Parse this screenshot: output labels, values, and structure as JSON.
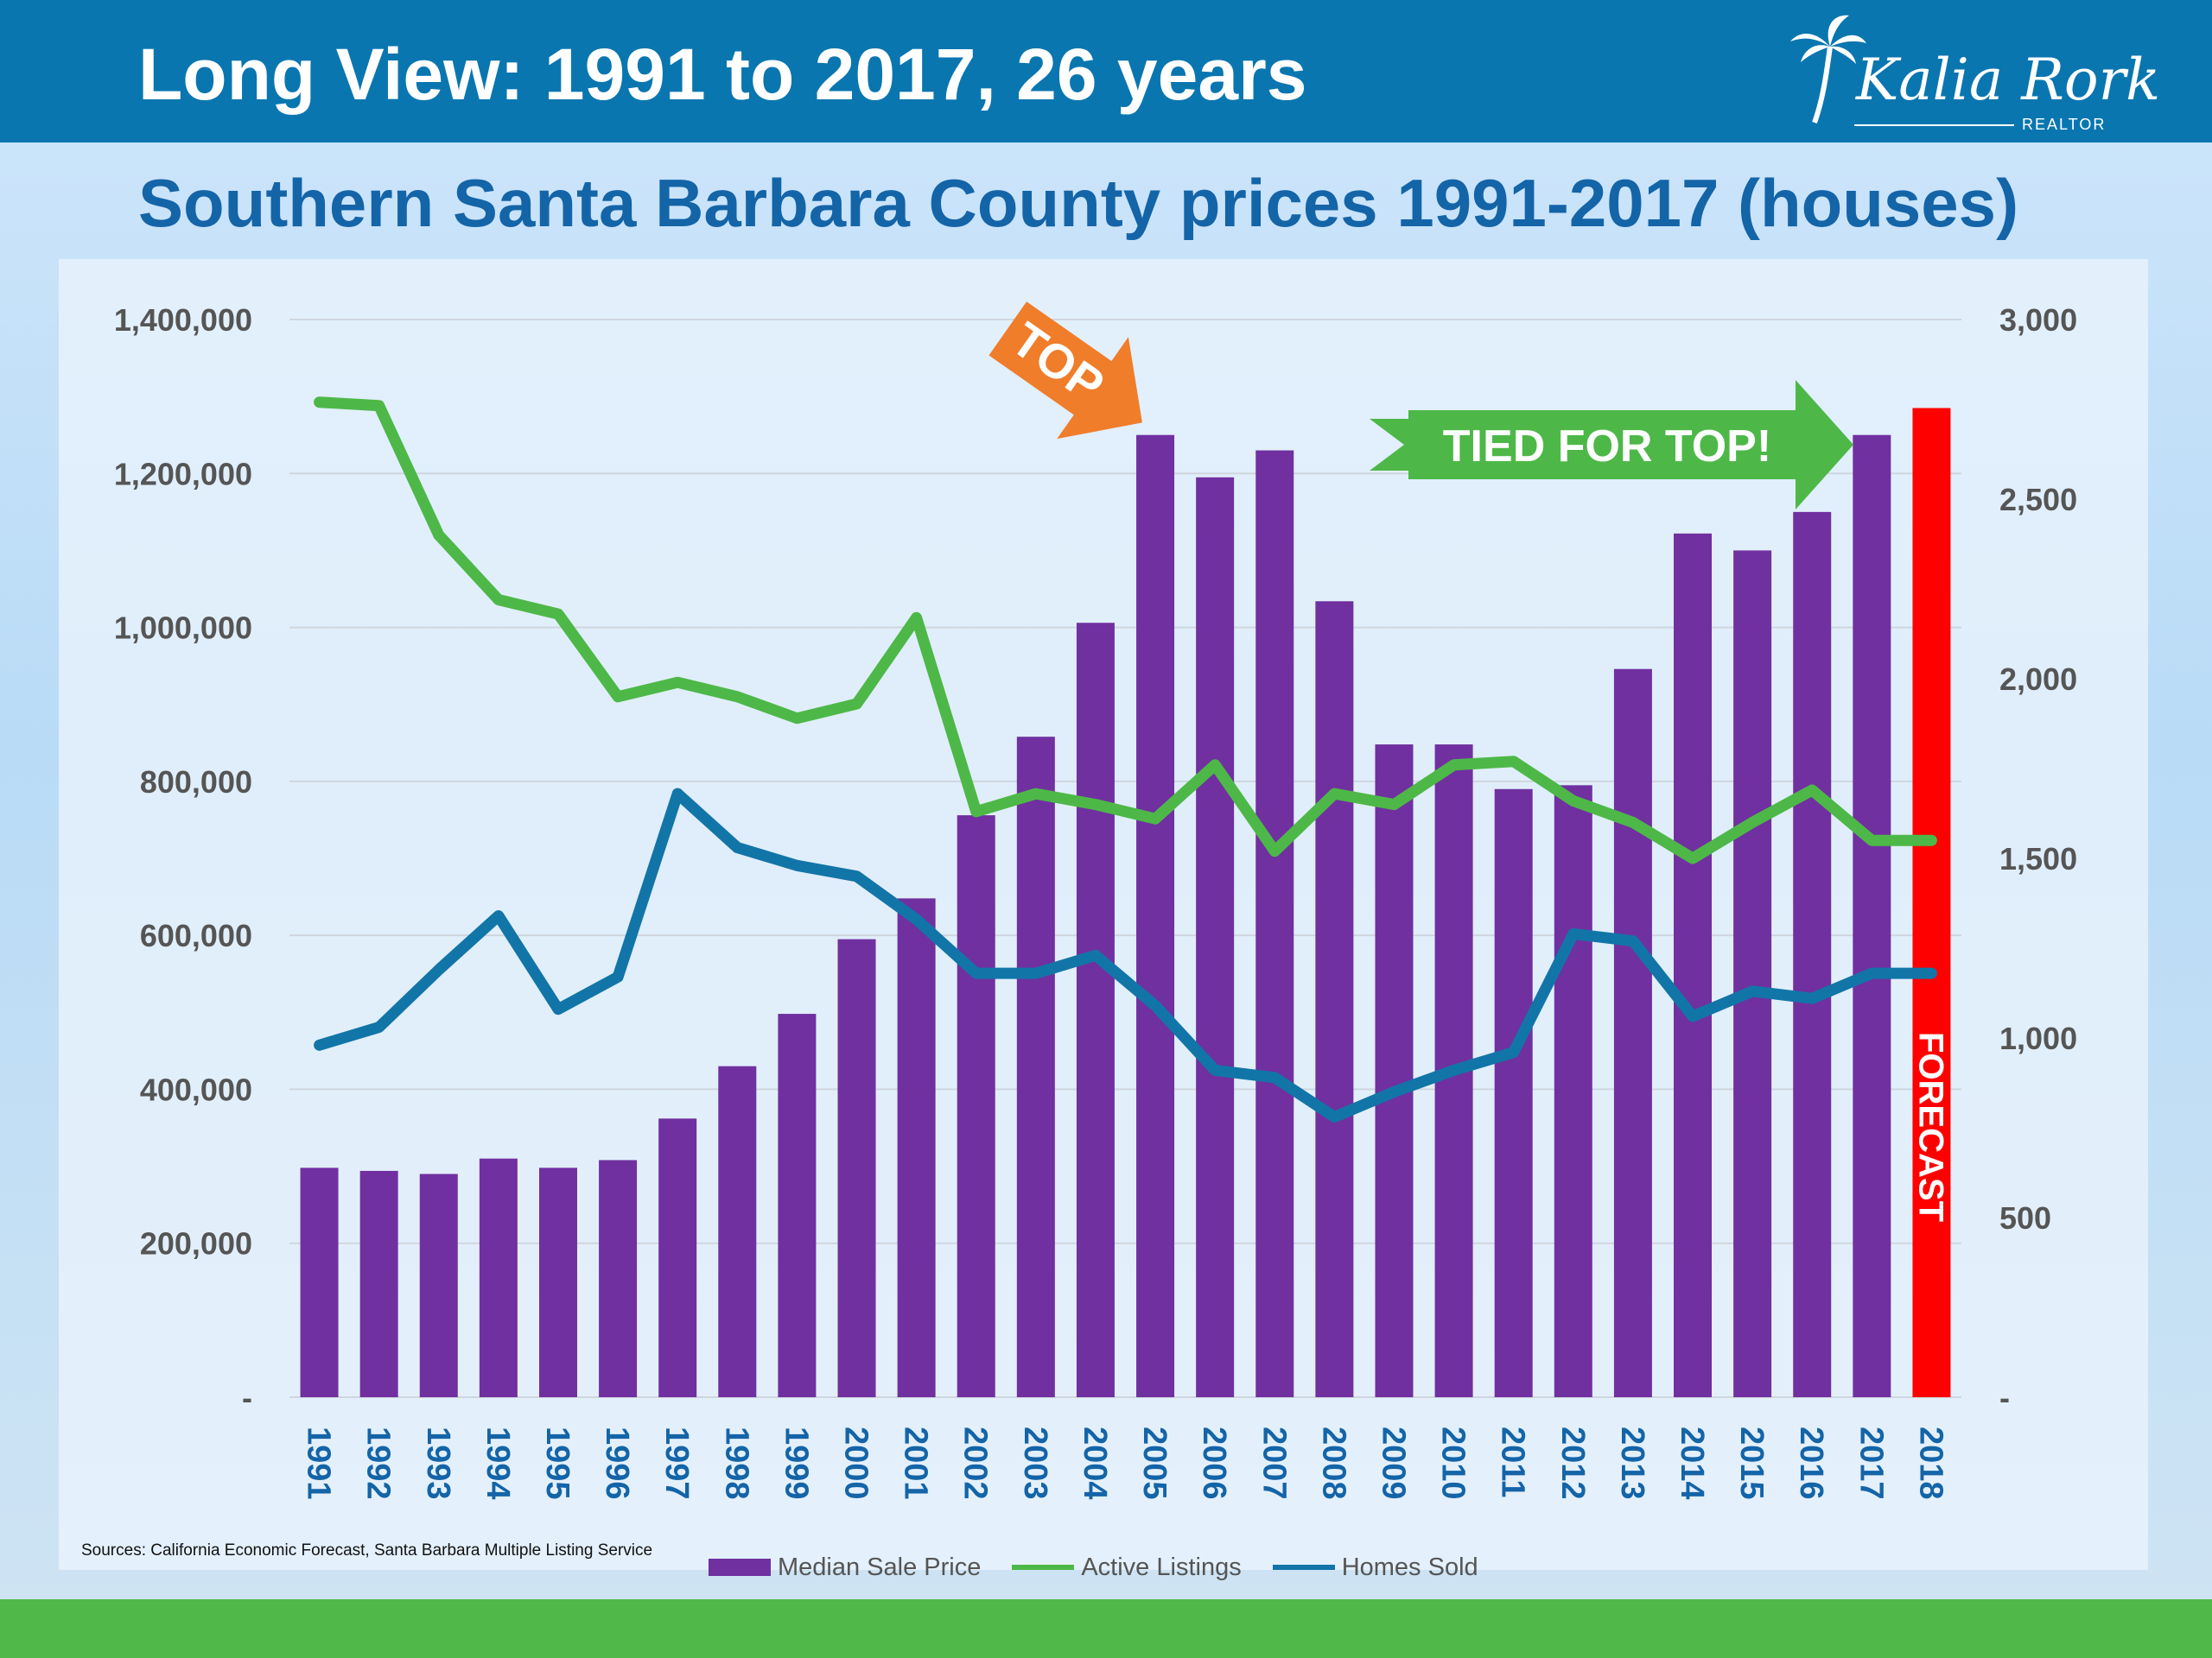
{
  "header": {
    "title": "Long View: 1991 to 2017, 26 years",
    "logo_name": "Kalia Rork",
    "logo_sub": "REALTOR"
  },
  "colors": {
    "header_bg": "#0a76b0",
    "bars": "#7030a0",
    "active_listings": "#4db848",
    "homes_sold": "#1275a8",
    "forecast": "#ff0000",
    "top_arrow": "#f07d2a",
    "tied_arrow": "#4db848",
    "footer": "#50b848"
  },
  "annotations": {
    "top": "TOP",
    "tied": "TIED FOR TOP!",
    "forecast": "FORECAST"
  },
  "source": "Sources: California Economic Forecast, Santa Barbara Multiple Listing Service",
  "chart_data": {
    "type": "bar",
    "title": "Southern Santa Barbara County prices 1991-2017 (houses)",
    "categories": [
      "1991",
      "1992",
      "1993",
      "1994",
      "1995",
      "1996",
      "1997",
      "1998",
      "1999",
      "2000",
      "2001",
      "2002",
      "2003",
      "2004",
      "2005",
      "2006",
      "2007",
      "2008",
      "2009",
      "2010",
      "2011",
      "2012",
      "2013",
      "2014",
      "2015",
      "2016",
      "2017",
      "2018"
    ],
    "left_axis": {
      "range": [
        0,
        1400000
      ],
      "ticks": [
        {
          "v": 0,
          "label": "-"
        },
        {
          "v": 200000,
          "label": "200,000"
        },
        {
          "v": 400000,
          "label": "400,000"
        },
        {
          "v": 600000,
          "label": "600,000"
        },
        {
          "v": 800000,
          "label": "800,000"
        },
        {
          "v": 1000000,
          "label": "1,000,000"
        },
        {
          "v": 1200000,
          "label": "1,200,000"
        },
        {
          "v": 1400000,
          "label": "1,400,000"
        }
      ]
    },
    "right_axis": {
      "range": [
        0,
        3000
      ],
      "ticks": [
        {
          "v": 0,
          "label": "-"
        },
        {
          "v": 500,
          "label": "500"
        },
        {
          "v": 1000,
          "label": "1,000"
        },
        {
          "v": 1500,
          "label": "1,500"
        },
        {
          "v": 2000,
          "label": "2,000"
        },
        {
          "v": 2500,
          "label": "2,500"
        },
        {
          "v": 3000,
          "label": "3,000"
        }
      ]
    },
    "grid": true,
    "legend_position": "bottom",
    "series": [
      {
        "name": "Median Sale Price",
        "type": "bar",
        "axis": "left",
        "values": [
          298000,
          294000,
          290000,
          310000,
          298000,
          308000,
          362000,
          430000,
          498000,
          595000,
          648000,
          756000,
          858000,
          1006000,
          1250000,
          1195000,
          1230000,
          1034000,
          848000,
          848000,
          790000,
          795000,
          946000,
          1122000,
          1100000,
          1150000,
          1250000,
          1285000
        ]
      },
      {
        "name": "Active Listings",
        "type": "line",
        "axis": "right",
        "values": [
          2770,
          2760,
          2400,
          2220,
          2180,
          1950,
          1990,
          1950,
          1890,
          1930,
          2170,
          1630,
          1680,
          1650,
          1610,
          1760,
          1520,
          1680,
          1650,
          1760,
          1770,
          1660,
          1600,
          1500,
          1600,
          1690,
          1550,
          1550
        ]
      },
      {
        "name": "Homes Sold",
        "type": "line",
        "axis": "right",
        "values": [
          980,
          1030,
          1190,
          1340,
          1080,
          1170,
          1680,
          1530,
          1480,
          1450,
          1330,
          1180,
          1180,
          1230,
          1090,
          910,
          890,
          780,
          850,
          910,
          960,
          1290,
          1270,
          1060,
          1130,
          1110,
          1180,
          1180
        ]
      }
    ],
    "forecast_year": "2018"
  }
}
